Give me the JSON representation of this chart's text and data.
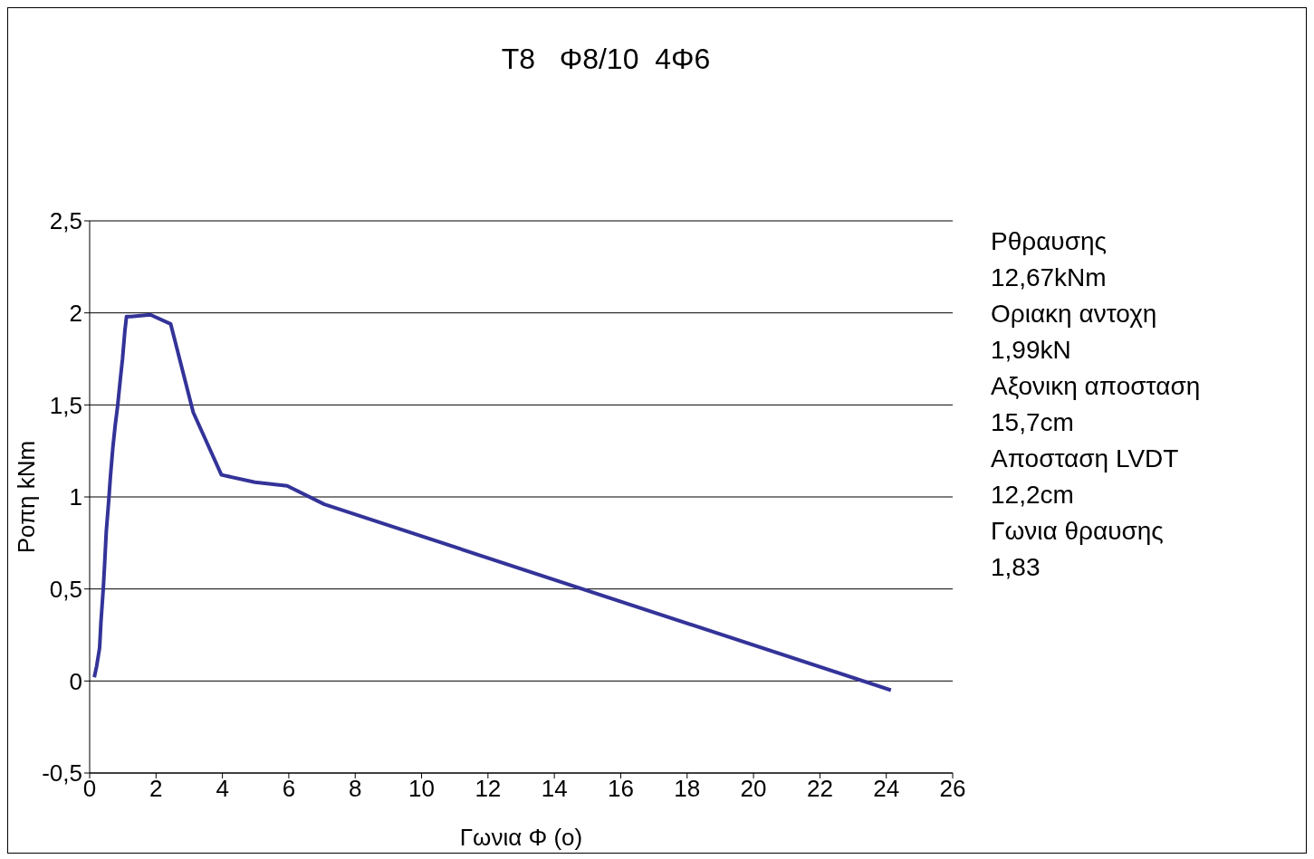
{
  "chart_data": {
    "type": "line",
    "title": "T8   Φ8/10  4Φ6",
    "xlabel": "Γωνια Φ (o)",
    "ylabel": "Ροπη kNm",
    "annotations": [
      "Ρθραυσης",
      "12,67kNm",
      "Οριακη αντοχη",
      "1,99kN",
      "Αξονικη αποσταση",
      "15,7cm",
      "Αποσταση LVDT",
      "12,2cm",
      "Γωνια θραυσης",
      "1,83"
    ],
    "series": [
      {
        "color": "#333399",
        "x": [
          0.14,
          0.21,
          0.3,
          0.34,
          0.41,
          0.45,
          0.5,
          0.57,
          0.63,
          0.7,
          0.77,
          0.84,
          0.93,
          0.99,
          1.06,
          1.11,
          1.24,
          1.83,
          2.44,
          3.12,
          3.97,
          4.98,
          5.95,
          7.07,
          24.14
        ],
        "values": [
          0.02,
          0.08,
          0.18,
          0.32,
          0.5,
          0.63,
          0.81,
          0.97,
          1.12,
          1.27,
          1.39,
          1.49,
          1.65,
          1.75,
          1.9,
          1.98,
          1.98,
          1.99,
          1.94,
          1.46,
          1.12,
          1.08,
          1.06,
          0.96,
          -0.05
        ]
      }
    ],
    "xlim": [
      0,
      26
    ],
    "xticks": [
      0,
      2,
      4,
      6,
      8,
      10,
      12,
      14,
      16,
      18,
      20,
      22,
      24,
      26
    ],
    "ylim": [
      -0.5,
      2.5
    ],
    "yticks": [
      {
        "value": -0.5,
        "label": "-0,5"
      },
      0,
      {
        "value": 0.5,
        "label": "0,5"
      },
      1,
      {
        "value": 1.5,
        "label": "1,5"
      },
      2,
      {
        "value": 2.5,
        "label": "2,5"
      }
    ],
    "grid": "y",
    "marker": "none",
    "line_style": "solid"
  }
}
